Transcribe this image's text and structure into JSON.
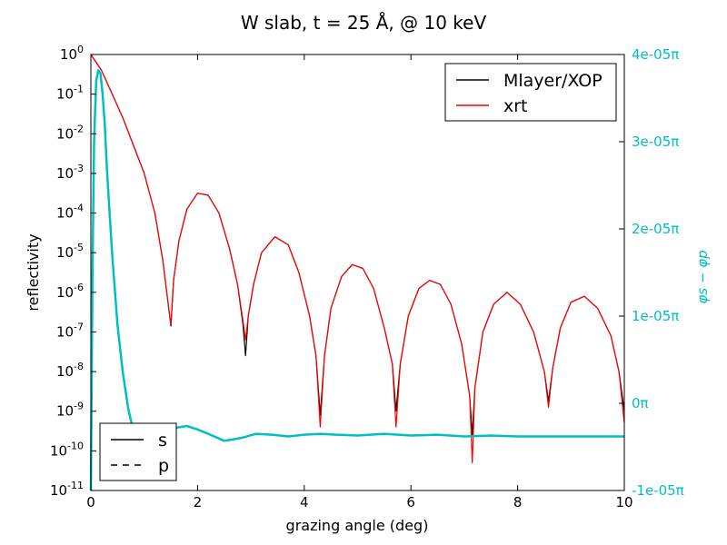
{
  "chart_data": {
    "type": "line",
    "title": "W slab, t = 25 Å, @ 10 keV",
    "xlabel": "grazing angle (deg)",
    "ylabel": "reflectivity",
    "y2label": "φs − φp",
    "xlim": [
      0,
      10
    ],
    "ylim_log10": [
      -11,
      0
    ],
    "y2lim": [
      -1e-05,
      4e-05
    ],
    "y2_unit": "π",
    "y_scale": "log",
    "grid": false,
    "x_ticks": [
      "0",
      "2",
      "4",
      "6",
      "8",
      "10"
    ],
    "x_tick_values": [
      0,
      2,
      4,
      6,
      8,
      10
    ],
    "y_ticks": [
      {
        "base": "10",
        "exp": "0",
        "value": 0
      },
      {
        "base": "10",
        "exp": "-1",
        "value": -1
      },
      {
        "base": "10",
        "exp": "-2",
        "value": -2
      },
      {
        "base": "10",
        "exp": "-3",
        "value": -3
      },
      {
        "base": "10",
        "exp": "-4",
        "value": -4
      },
      {
        "base": "10",
        "exp": "-5",
        "value": -5
      },
      {
        "base": "10",
        "exp": "-6",
        "value": -6
      },
      {
        "base": "10",
        "exp": "-7",
        "value": -7
      },
      {
        "base": "10",
        "exp": "-8",
        "value": -8
      },
      {
        "base": "10",
        "exp": "-9",
        "value": -9
      },
      {
        "base": "10",
        "exp": "-10",
        "value": -10
      },
      {
        "base": "10",
        "exp": "-11",
        "value": -11
      }
    ],
    "y2_ticks": [
      {
        "label": "4e-05π",
        "value": 4e-05
      },
      {
        "label": "3e-05π",
        "value": 3e-05
      },
      {
        "label": "2e-05π",
        "value": 2e-05
      },
      {
        "label": "1e-05π",
        "value": 1e-05
      },
      {
        "label": "0π",
        "value": 0
      },
      {
        "label": "-1e-05π",
        "value": -1e-05
      }
    ],
    "legend_top": {
      "placement": "top-right",
      "entries": [
        {
          "label": "Mlayer/XOP",
          "color": "#000000"
        },
        {
          "label": "xrt",
          "color": "#ff0000"
        }
      ]
    },
    "legend_bottom": {
      "placement": "bottom-left",
      "entries": [
        {
          "label": "s",
          "style": "solid"
        },
        {
          "label": "p",
          "style": "dashed"
        }
      ]
    },
    "series": [
      {
        "name": "Mlayer/XOP",
        "color": "#000000",
        "axis": "left",
        "x": [
          0,
          0.2,
          0.4,
          0.6,
          0.8,
          1.0,
          1.2,
          1.35,
          1.45,
          1.5,
          1.55,
          1.65,
          1.8,
          2.0,
          2.2,
          2.4,
          2.6,
          2.75,
          2.85,
          2.9,
          2.95,
          3.05,
          3.2,
          3.45,
          3.7,
          3.9,
          4.1,
          4.22,
          4.3,
          4.38,
          4.5,
          4.7,
          4.9,
          5.1,
          5.3,
          5.5,
          5.65,
          5.72,
          5.8,
          5.95,
          6.15,
          6.35,
          6.55,
          6.75,
          6.95,
          7.1,
          7.15,
          7.2,
          7.35,
          7.55,
          7.8,
          8.05,
          8.3,
          8.5,
          8.58,
          8.66,
          8.8,
          9.0,
          9.25,
          9.5,
          9.75,
          9.9,
          10.0
        ],
        "y_log10": [
          0,
          -0.4,
          -1.0,
          -1.6,
          -2.3,
          -3.0,
          -4.0,
          -5.2,
          -6.3,
          -6.85,
          -5.7,
          -4.7,
          -3.9,
          -3.5,
          -3.55,
          -4.0,
          -4.9,
          -5.8,
          -6.8,
          -7.6,
          -6.6,
          -5.8,
          -5.0,
          -4.6,
          -4.8,
          -5.5,
          -6.6,
          -7.6,
          -9.1,
          -7.6,
          -6.4,
          -5.6,
          -5.3,
          -5.4,
          -5.9,
          -6.9,
          -7.8,
          -9.0,
          -7.8,
          -6.6,
          -5.9,
          -5.7,
          -5.8,
          -6.3,
          -7.3,
          -8.6,
          -9.6,
          -8.4,
          -7.0,
          -6.3,
          -6.0,
          -6.3,
          -7.0,
          -8.0,
          -8.75,
          -7.9,
          -6.9,
          -6.25,
          -6.1,
          -6.4,
          -7.1,
          -8.0,
          -9.0
        ]
      },
      {
        "name": "xrt",
        "color": "#ff0000",
        "axis": "left",
        "x": [
          0,
          0.2,
          0.4,
          0.6,
          0.8,
          1.0,
          1.2,
          1.35,
          1.45,
          1.5,
          1.55,
          1.65,
          1.8,
          2.0,
          2.2,
          2.4,
          2.6,
          2.75,
          2.85,
          2.9,
          2.95,
          3.05,
          3.2,
          3.45,
          3.7,
          3.9,
          4.1,
          4.22,
          4.3,
          4.38,
          4.5,
          4.7,
          4.9,
          5.1,
          5.3,
          5.5,
          5.65,
          5.72,
          5.8,
          5.95,
          6.15,
          6.35,
          6.55,
          6.75,
          6.95,
          7.1,
          7.15,
          7.2,
          7.35,
          7.55,
          7.8,
          8.05,
          8.3,
          8.5,
          8.58,
          8.66,
          8.8,
          9.0,
          9.25,
          9.5,
          9.75,
          9.9,
          10.0
        ],
        "y_log10": [
          0,
          -0.4,
          -1.0,
          -1.6,
          -2.3,
          -3.0,
          -4.0,
          -5.2,
          -6.3,
          -6.8,
          -5.7,
          -4.7,
          -3.9,
          -3.5,
          -3.55,
          -4.0,
          -4.9,
          -5.8,
          -6.7,
          -7.2,
          -6.6,
          -5.8,
          -5.0,
          -4.6,
          -4.8,
          -5.5,
          -6.6,
          -7.6,
          -9.4,
          -7.6,
          -6.4,
          -5.6,
          -5.3,
          -5.4,
          -5.9,
          -6.9,
          -7.8,
          -9.4,
          -7.8,
          -6.6,
          -5.9,
          -5.7,
          -5.8,
          -6.3,
          -7.3,
          -8.6,
          -10.3,
          -8.4,
          -7.0,
          -6.3,
          -6.0,
          -6.3,
          -7.0,
          -8.0,
          -8.9,
          -7.9,
          -6.9,
          -6.25,
          -6.1,
          -6.4,
          -7.1,
          -8.0,
          -9.3
        ]
      },
      {
        "name": "phase difference",
        "color": "#00bfbf",
        "axis": "right",
        "x": [
          0,
          0.03,
          0.06,
          0.1,
          0.14,
          0.18,
          0.22,
          0.26,
          0.3,
          0.35,
          0.4,
          0.5,
          0.6,
          0.7,
          0.8,
          0.9,
          1.0,
          1.1,
          1.2,
          1.3,
          1.45,
          1.6,
          1.8,
          2.0,
          2.2,
          2.5,
          2.8,
          3.1,
          3.4,
          3.7,
          4.0,
          4.3,
          4.6,
          5.0,
          5.5,
          6.0,
          6.5,
          7.0,
          7.5,
          8.0,
          8.5,
          9.0,
          9.5,
          10.0
        ],
        "y": [
          -1e-05,
          1.5e-05,
          3e-05,
          3.7e-05,
          3.82e-05,
          3.78e-05,
          3.55e-05,
          3.2e-05,
          2.7e-05,
          2.2e-05,
          1.7e-05,
          9e-06,
          3.5e-06,
          -6e-07,
          -3.3e-06,
          -5e-06,
          -6.4e-06,
          -6.3e-06,
          -5.5e-06,
          -4.5e-06,
          -3.3e-06,
          -2.8e-06,
          -2.6e-06,
          -3e-06,
          -3.5e-06,
          -4.3e-06,
          -4e-06,
          -3.5e-06,
          -3.6e-06,
          -3.8e-06,
          -3.6e-06,
          -3.5e-06,
          -3.6e-06,
          -3.7e-06,
          -3.5e-06,
          -3.7e-06,
          -3.6e-06,
          -3.8e-06,
          -3.7e-06,
          -3.8e-06,
          -3.8e-06,
          -3.8e-06,
          -3.8e-06,
          -3.8e-06
        ]
      }
    ]
  }
}
